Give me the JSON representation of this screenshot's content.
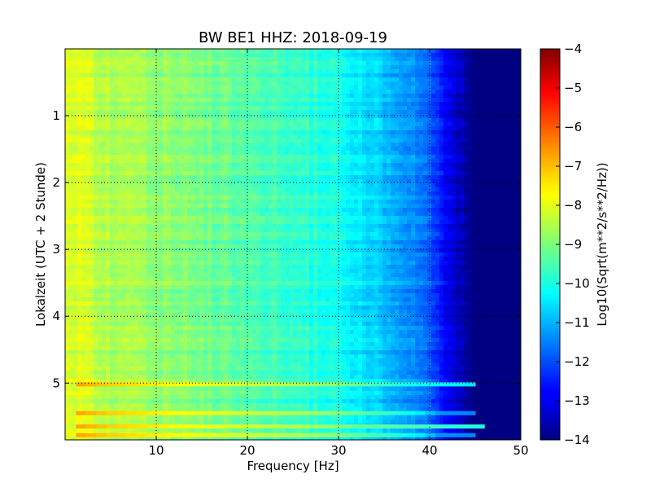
{
  "chart_data": {
    "type": "heatmap",
    "title": "BW BE1 HHZ: 2018-09-19",
    "xlabel": "Frequency [Hz]",
    "ylabel": "Lokalzeit (UTC + 2 Stunde)",
    "xlim": [
      0,
      50
    ],
    "ylim": [
      5.85,
      0
    ],
    "x_ticks": [
      10,
      20,
      30,
      40,
      50
    ],
    "x_tick_labels": [
      "10",
      "20",
      "30",
      "40",
      "50"
    ],
    "y_ticks": [
      1,
      2,
      3,
      4,
      5
    ],
    "y_tick_labels": [
      "1",
      "2",
      "3",
      "4",
      "5"
    ],
    "grid": true,
    "grid_style": "dotted",
    "colorbar": {
      "label": "Log10(Sqrt(m**2/s**2/Hz))",
      "range": [
        -14,
        -4
      ],
      "ticks": [
        -4,
        -5,
        -6,
        -7,
        -8,
        -9,
        -10,
        -11,
        -12,
        -13,
        -14
      ],
      "tick_labels": [
        "−4",
        "−5",
        "−6",
        "−7",
        "−8",
        "−9",
        "−10",
        "−11",
        "−12",
        "−13",
        "−14"
      ],
      "colormap": "jet"
    },
    "z_profile_by_frequency": [
      {
        "freq_hz": 1,
        "value": -8.0
      },
      {
        "freq_hz": 5,
        "value": -8.5
      },
      {
        "freq_hz": 10,
        "value": -8.8
      },
      {
        "freq_hz": 15,
        "value": -9.1
      },
      {
        "freq_hz": 20,
        "value": -9.4
      },
      {
        "freq_hz": 25,
        "value": -9.7
      },
      {
        "freq_hz": 30,
        "value": -10.1
      },
      {
        "freq_hz": 33,
        "value": -10.6
      },
      {
        "freq_hz": 36,
        "value": -11.0
      },
      {
        "freq_hz": 39,
        "value": -11.6
      },
      {
        "freq_hz": 41,
        "value": -12.4
      },
      {
        "freq_hz": 43,
        "value": -13.2
      },
      {
        "freq_hz": 45,
        "value": -14.0
      },
      {
        "freq_hz": 50,
        "value": -14.0
      }
    ],
    "bright_bands": [
      {
        "time_h": 5.02,
        "max_freq_hz": 45,
        "value": -8.0
      },
      {
        "time_h": 5.45,
        "max_freq_hz": 45,
        "value": -9.0
      },
      {
        "time_h": 5.65,
        "max_freq_hz": 46,
        "value": -7.5
      },
      {
        "time_h": 5.78,
        "max_freq_hz": 45,
        "value": -9.0
      }
    ]
  }
}
